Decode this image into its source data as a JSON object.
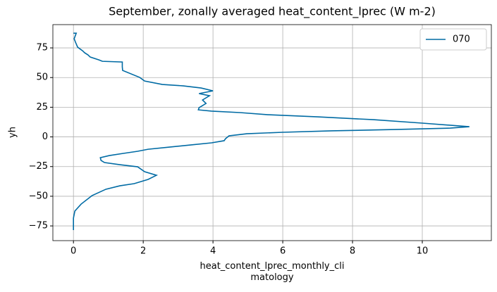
{
  "chart_data": {
    "type": "line",
    "title": "September, zonally averaged heat_content_lprec (W m-2)",
    "xlabel": "heat_content_lprec_monthly_cli\nmatology",
    "ylabel": "yh",
    "x": [
      0,
      0.08,
      0.02,
      0.06,
      0.12,
      0.26,
      0.32,
      0.42,
      0.48,
      0.73,
      0.83,
      1.4,
      1.4,
      1.41,
      1.9,
      2.04,
      2.55,
      3.15,
      3.66,
      4.0,
      3.6,
      3.9,
      3.7,
      3.8,
      3.7,
      3.6,
      3.58,
      3.96,
      4.77,
      5.58,
      7.0,
      8.6,
      10.0,
      11.35,
      10.8,
      9.2,
      7.4,
      6.0,
      4.97,
      4.46,
      4.36,
      4.32,
      3.96,
      3.35,
      2.75,
      2.14,
      1.84,
      1.43,
      1.03,
      0.77,
      0.79,
      0.89,
      1.33,
      1.84,
      2.04,
      2.38,
      2.14,
      1.74,
      1.33,
      0.93,
      0.53,
      0.22,
      0.04,
      0,
      0
    ],
    "series": [
      {
        "name": "070",
        "color": "#006ba4",
        "values": [
          87.4,
          87.4,
          82.7,
          79.7,
          75.6,
          72.6,
          70.9,
          69,
          67.3,
          64.9,
          63.7,
          63.1,
          59,
          56,
          50.1,
          47.1,
          44.2,
          43,
          41.2,
          38.8,
          36.5,
          34.7,
          31.1,
          28.2,
          26.4,
          24.6,
          22.8,
          21.7,
          20.5,
          18.7,
          16.9,
          14.5,
          11.6,
          8.6,
          7.4,
          6.2,
          5.1,
          3.9,
          2.7,
          0.9,
          -1.5,
          -3.2,
          -5.0,
          -6.8,
          -8.6,
          -10.4,
          -12.1,
          -13.9,
          -15.7,
          -17.5,
          -19.8,
          -21.6,
          -23.4,
          -25.2,
          -29.3,
          -32.3,
          -35.8,
          -39.4,
          -41.2,
          -44.1,
          -49.5,
          -56.6,
          -62.5,
          -68.4,
          -78.5
        ]
      }
    ],
    "xlim": [
      -0.59,
      11.98
    ],
    "ylim": [
      -87.4,
      94.6
    ],
    "xticks": [
      0,
      2,
      4,
      6,
      8,
      10
    ],
    "yticks": [
      {
        "value": -75,
        "label": "−75"
      },
      {
        "value": -50,
        "label": "−50"
      },
      {
        "value": -25,
        "label": "−25"
      },
      0,
      25,
      50,
      75
    ],
    "grid": true,
    "legend": "upper right"
  }
}
